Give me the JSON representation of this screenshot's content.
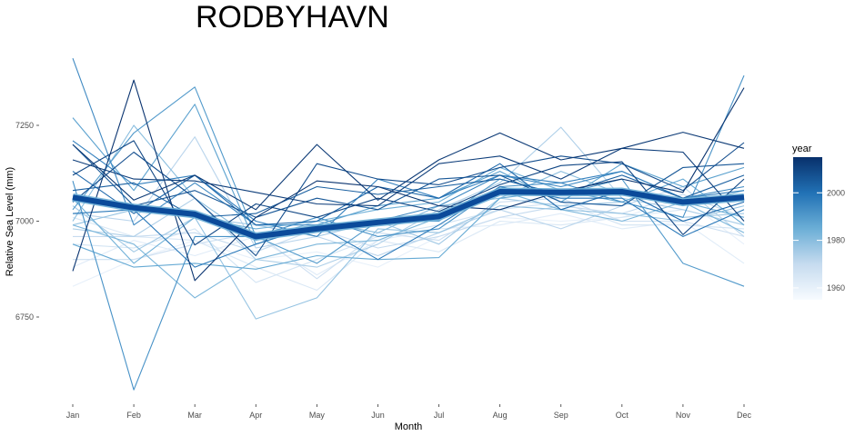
{
  "chart_data": {
    "type": "line",
    "title": "RODBYHAVN",
    "xlabel": "Month",
    "ylabel": "Relative Sea Level (mm)",
    "categories": [
      "Jan",
      "Feb",
      "Mar",
      "Apr",
      "May",
      "Jun",
      "Jul",
      "Aug",
      "Sep",
      "Oct",
      "Nov",
      "Dec"
    ],
    "y_ticks": [
      6750,
      7000,
      7250
    ],
    "ylim": [
      6550,
      7440
    ],
    "grid": false,
    "legend": {
      "title": "year",
      "position": "right",
      "ticks": [
        1960,
        1980,
        2000
      ],
      "range": [
        1955,
        2015
      ],
      "colors": [
        "#f7fbff",
        "#c6dbef",
        "#6baed6",
        "#2171b5",
        "#08306b"
      ]
    },
    "mean_series": {
      "name": "mean",
      "color": "#0b4a9a",
      "values": [
        7062,
        7035,
        7018,
        6960,
        6980,
        6997,
        7012,
        7077,
        7075,
        7077,
        7050,
        7062
      ]
    },
    "series": [
      {
        "year": 2014,
        "values": [
          6870,
          7368,
          6845,
          7010,
          7105,
          7090,
          7040,
          7030,
          7078,
          7110,
          7075,
          7348
        ]
      },
      {
        "year": 2013,
        "values": [
          7200,
          7055,
          7120,
          7030,
          7200,
          7055,
          7160,
          7230,
          7160,
          7190,
          7232,
          7190
        ]
      },
      {
        "year": 2012,
        "values": [
          7160,
          7110,
          7105,
          7075,
          7045,
          7040,
          7150,
          7170,
          7110,
          7190,
          7180,
          7000
        ]
      },
      {
        "year": 2010,
        "values": [
          7120,
          7210,
          6938,
          7045,
          7010,
          7060,
          7025,
          7095,
          7145,
          7155,
          6965,
          7110
        ]
      },
      {
        "year": 2008,
        "values": [
          7050,
          7180,
          7060,
          6910,
          7150,
          7110,
          7095,
          7140,
          7170,
          7150,
          7080,
          7205
        ]
      },
      {
        "year": 2006,
        "values": [
          7200,
          7040,
          7080,
          7010,
          7060,
          7030,
          7110,
          7120,
          7050,
          7040,
          7140,
          7150
        ]
      },
      {
        "year": 2004,
        "values": [
          7080,
          7100,
          7010,
          7020,
          7090,
          7070,
          7090,
          7110,
          7070,
          7120,
          7060,
          7120
        ]
      },
      {
        "year": 2002,
        "values": [
          7130,
          7020,
          7120,
          6990,
          7000,
          7090,
          7060,
          7150,
          7030,
          7080,
          7000,
          7050
        ]
      },
      {
        "year": 1998,
        "values": [
          7020,
          7030,
          6880,
          6940,
          6990,
          6900,
          6990,
          7090,
          7060,
          7060,
          6960,
          7030
        ]
      },
      {
        "year": 1996,
        "values": [
          7210,
          7095,
          7120,
          7000,
          6960,
          7110,
          7060,
          7120,
          7100,
          7130,
          7060,
          7080
        ]
      },
      {
        "year": 1994,
        "values": [
          7425,
          6990,
          7100,
          6990,
          6990,
          7000,
          7040,
          7120,
          7090,
          7130,
          7060,
          7090
        ]
      },
      {
        "year": 1992,
        "values": [
          7105,
          6560,
          6960,
          6960,
          7010,
          6960,
          6980,
          7090,
          7100,
          7050,
          7010,
          7380
        ]
      },
      {
        "year": 1990,
        "values": [
          7030,
          7230,
          7350,
          6960,
          6890,
          7000,
          7000,
          7110,
          7070,
          7110,
          6890,
          6830
        ]
      },
      {
        "year": 1988,
        "values": [
          7270,
          7080,
          7305,
          6940,
          6990,
          7040,
          7060,
          7130,
          7050,
          7150,
          7090,
          7140
        ]
      },
      {
        "year": 1986,
        "values": [
          6940,
          6880,
          6890,
          6875,
          6910,
          6900,
          6905,
          7060,
          7080,
          7050,
          7110,
          6990
        ]
      },
      {
        "year": 1984,
        "values": [
          7060,
          6890,
          7010,
          6980,
          7000,
          7030,
          7050,
          7140,
          7080,
          7070,
          7050,
          7010
        ]
      },
      {
        "year": 1982,
        "values": [
          6990,
          6940,
          6800,
          6900,
          6940,
          6950,
          7010,
          7080,
          7030,
          7000,
          7050,
          6970
        ]
      },
      {
        "year": 1980,
        "values": [
          7000,
          7250,
          7060,
          6950,
          7000,
          6970,
          7040,
          7060,
          7130,
          7070,
          7040,
          7080
        ]
      },
      {
        "year": 1978,
        "values": [
          6990,
          7030,
          7010,
          6745,
          6800,
          6980,
          6970,
          7040,
          7030,
          7020,
          7000,
          7040
        ]
      },
      {
        "year": 1976,
        "values": [
          7040,
          6920,
          7010,
          6990,
          6960,
          7000,
          6940,
          7060,
          7040,
          7050,
          7010,
          7020
        ]
      },
      {
        "year": 1974,
        "values": [
          6980,
          6960,
          7060,
          6900,
          6880,
          6940,
          7030,
          7100,
          7245,
          7060,
          7030,
          6990
        ]
      },
      {
        "year": 1972,
        "values": [
          7020,
          7000,
          7220,
          6930,
          6960,
          6910,
          6970,
          7030,
          6980,
          7040,
          7090,
          6960
        ]
      },
      {
        "year": 1970,
        "values": [
          6960,
          6960,
          6970,
          6920,
          6980,
          6930,
          6960,
          7010,
          7040,
          7020,
          7070,
          7010
        ]
      },
      {
        "year": 1968,
        "values": [
          6900,
          6900,
          6940,
          6970,
          6850,
          6970,
          6950,
          7050,
          7060,
          7000,
          7000,
          6960
        ]
      },
      {
        "year": 1966,
        "values": [
          6940,
          6930,
          6980,
          6840,
          6900,
          6960,
          6990,
          7030,
          7050,
          6990,
          6990,
          6980
        ]
      },
      {
        "year": 1964,
        "values": [
          7010,
          6960,
          6950,
          6880,
          6820,
          6950,
          6920,
          7000,
          6990,
          7010,
          7030,
          6990
        ]
      },
      {
        "year": 1962,
        "values": [
          6880,
          6950,
          6910,
          6960,
          6860,
          6950,
          6980,
          6990,
          7020,
          6980,
          7000,
          6890
        ]
      },
      {
        "year": 1960,
        "values": [
          6830,
          6900,
          6950,
          6900,
          6920,
          6880,
          6960,
          7010,
          7000,
          7010,
          7060,
          6940
        ]
      }
    ]
  }
}
